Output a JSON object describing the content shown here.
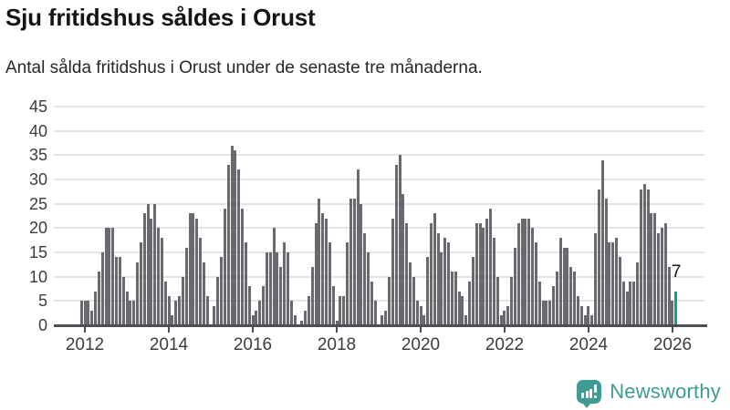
{
  "header": {
    "title": "Sju fritidshus såldes i Orust",
    "subtitle": "Antal sålda fritidshus i Orust under de senaste tre månaderna."
  },
  "chart_data": {
    "type": "bar",
    "title": "Sju fritidshus såldes i Orust",
    "subtitle": "Antal sålda fritidshus i Orust under de senaste tre månaderna.",
    "x_start": "2011-12",
    "x_interval": "month",
    "values": [
      5,
      5,
      5,
      3,
      7,
      11,
      15,
      20,
      20,
      20,
      14,
      14,
      10,
      7,
      5,
      5,
      13,
      17,
      23,
      25,
      22,
      25,
      20,
      18,
      9,
      6,
      2,
      5,
      6,
      10,
      16,
      23,
      23,
      22,
      18,
      13,
      6,
      0,
      4,
      10,
      14,
      24,
      33,
      37,
      36,
      32,
      24,
      17,
      8,
      2,
      3,
      5,
      8,
      15,
      15,
      20,
      15,
      12,
      17,
      15,
      5,
      2,
      0,
      1,
      3,
      6,
      12,
      21,
      26,
      23,
      22,
      17,
      8,
      1,
      6,
      6,
      17,
      26,
      26,
      32,
      25,
      19,
      15,
      9,
      5,
      0,
      2,
      3,
      10,
      22,
      33,
      35,
      27,
      21,
      13,
      10,
      5,
      4,
      2,
      14,
      21,
      23,
      19,
      15,
      18,
      17,
      11,
      11,
      7,
      6,
      2,
      9,
      14,
      21,
      21,
      20,
      22,
      24,
      18,
      10,
      2,
      3,
      4,
      10,
      16,
      21,
      22,
      22,
      22,
      20,
      17,
      9,
      5,
      5,
      5,
      8,
      11,
      18,
      16,
      16,
      12,
      11,
      6,
      4,
      2,
      4,
      2,
      19,
      28,
      34,
      26,
      17,
      17,
      18,
      14,
      9,
      7,
      9,
      9,
      13,
      28,
      29,
      28,
      23,
      23,
      19,
      20,
      21,
      12,
      5,
      7
    ],
    "highlight": {
      "index": 170,
      "value": 7,
      "label": "7"
    },
    "ylim": [
      0,
      45
    ],
    "yticks": [
      0,
      5,
      10,
      15,
      20,
      25,
      30,
      35,
      40,
      45
    ],
    "xtick_years": [
      "2012",
      "2014",
      "2016",
      "2018",
      "2020",
      "2022",
      "2024",
      "2026"
    ],
    "grid": true,
    "legend": "none",
    "colors": {
      "bar": "#69696f",
      "highlight": "#119E94",
      "axis": "#4e4e55",
      "grid": "#e4e4e4",
      "tick_text": "#3c3c42"
    }
  },
  "footer": {
    "brand": "Newsworthy",
    "brand_color": "#3E9C94",
    "logo_icon": "newsworthy-chart-bubble-icon"
  }
}
